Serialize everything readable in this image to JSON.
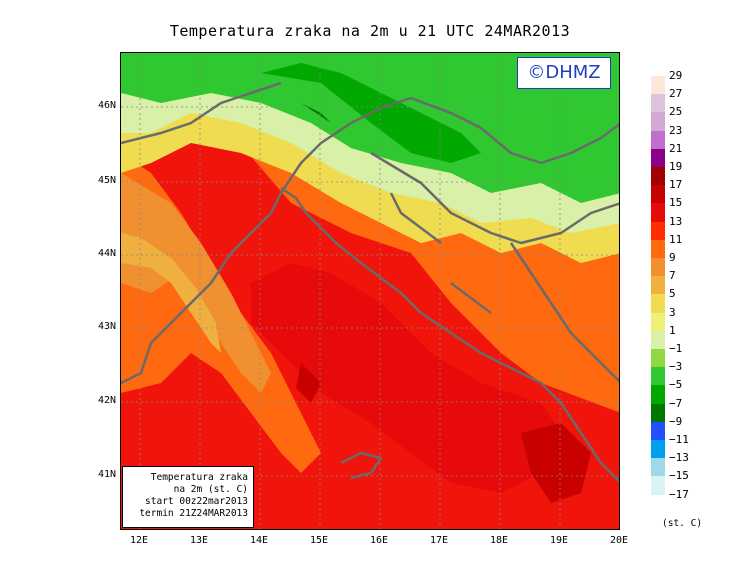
{
  "title": "Temperatura zraka na 2m u 21 UTC 24MAR2013",
  "watermark": "©DHMZ",
  "axes": {
    "lat_ticks": [
      "46N",
      "45N",
      "44N",
      "43N",
      "42N",
      "41N"
    ],
    "lon_ticks": [
      "12E",
      "13E",
      "14E",
      "15E",
      "16E",
      "17E",
      "18E",
      "19E",
      "20E"
    ]
  },
  "info_box": {
    "line1": "Temperatura zraka",
    "line2": "na 2m (st. C)",
    "line3": "start 00z22mar2013",
    "line4": "termin 21Z24MAR2013"
  },
  "legend": {
    "unit": "(st. C)",
    "labels": [
      "29",
      "27",
      "25",
      "23",
      "21",
      "19",
      "17",
      "15",
      "13",
      "11",
      "9",
      "7",
      "5",
      "3",
      "1",
      "−1",
      "−3",
      "−5",
      "−7",
      "−9",
      "−11",
      "−13",
      "−15",
      "−17"
    ],
    "colors": [
      "#fbe8d8",
      "#dcc4dc",
      "#d4a8d4",
      "#c070cc",
      "#8c0088",
      "#a00000",
      "#c80000",
      "#e60a0a",
      "#ff2e00",
      "#ff6a10",
      "#f09030",
      "#f0b040",
      "#f0dc50",
      "#f0f078",
      "#d8f0a8",
      "#8fd840",
      "#30c830",
      "#00a800",
      "#007800",
      "#2050ff",
      "#00a0f0",
      "#a0d8e8",
      "#d8f4f4",
      "#ffffff"
    ]
  }
}
